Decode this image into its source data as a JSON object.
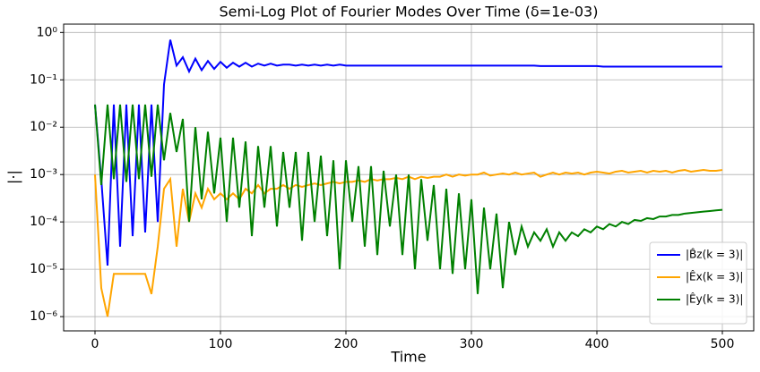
{
  "chart_data": {
    "type": "line",
    "title": "Semi-Log Plot of Fourier Modes Over Time (δ=1e-03)",
    "x_label": "Time",
    "y_label": "|·|",
    "log_y": true,
    "grid": true,
    "legend": "lower right",
    "xlim": [
      -25,
      525
    ],
    "xticks": [
      0,
      100,
      200,
      300,
      400,
      500
    ],
    "ylim": [
      5e-07,
      1.5
    ],
    "yticks": [
      {
        "value": 1,
        "label": "10⁰"
      },
      {
        "value": 0.1,
        "label": "10⁻¹"
      },
      {
        "value": 0.01,
        "label": "10⁻²"
      },
      {
        "value": 0.001,
        "label": "10⁻³"
      },
      {
        "value": 0.0001,
        "label": "10⁻⁴"
      },
      {
        "value": 1e-05,
        "label": "10⁻⁵"
      },
      {
        "value": 1e-06,
        "label": "10⁻⁶"
      }
    ],
    "x": [
      0,
      5,
      10,
      15,
      20,
      25,
      30,
      35,
      40,
      45,
      50,
      55,
      60,
      65,
      70,
      75,
      80,
      85,
      90,
      95,
      100,
      105,
      110,
      115,
      120,
      125,
      130,
      135,
      140,
      145,
      150,
      155,
      160,
      165,
      170,
      175,
      180,
      185,
      190,
      195,
      200,
      205,
      210,
      215,
      220,
      225,
      230,
      235,
      240,
      245,
      250,
      255,
      260,
      265,
      270,
      275,
      280,
      285,
      290,
      295,
      300,
      305,
      310,
      315,
      320,
      325,
      330,
      335,
      340,
      345,
      350,
      355,
      360,
      365,
      370,
      375,
      380,
      385,
      390,
      395,
      400,
      405,
      410,
      415,
      420,
      425,
      430,
      435,
      440,
      445,
      450,
      455,
      460,
      465,
      470,
      475,
      480,
      485,
      490,
      495,
      500
    ],
    "series": [
      {
        "name": "|B̂z(k = 3)|",
        "color": "#0000ff",
        "values": [
          0.03,
          0.0008,
          1.2e-05,
          0.03,
          3e-05,
          0.03,
          5e-05,
          0.03,
          6e-05,
          0.03,
          0.0001,
          0.08,
          0.7,
          0.2,
          0.3,
          0.15,
          0.28,
          0.16,
          0.25,
          0.17,
          0.24,
          0.18,
          0.23,
          0.19,
          0.23,
          0.19,
          0.22,
          0.2,
          0.22,
          0.2,
          0.21,
          0.21,
          0.2,
          0.21,
          0.2,
          0.21,
          0.2,
          0.21,
          0.2,
          0.21,
          0.2,
          0.2,
          0.2,
          0.2,
          0.2,
          0.2,
          0.2,
          0.2,
          0.2,
          0.2,
          0.2,
          0.2,
          0.2,
          0.2,
          0.2,
          0.2,
          0.2,
          0.2,
          0.2,
          0.2,
          0.2,
          0.2,
          0.2,
          0.2,
          0.2,
          0.2,
          0.2,
          0.2,
          0.2,
          0.2,
          0.2,
          0.195,
          0.195,
          0.195,
          0.195,
          0.195,
          0.195,
          0.195,
          0.195,
          0.195,
          0.195,
          0.19,
          0.19,
          0.19,
          0.19,
          0.19,
          0.19,
          0.19,
          0.19,
          0.19,
          0.19,
          0.19,
          0.19,
          0.19,
          0.19,
          0.19,
          0.19,
          0.19,
          0.19,
          0.19,
          0.19
        ]
      },
      {
        "name": "|Êx(k = 3)|",
        "color": "#ffa500",
        "values": [
          0.001,
          4e-06,
          1e-06,
          8e-06,
          8e-06,
          8e-06,
          8e-06,
          8e-06,
          8e-06,
          3e-06,
          3e-05,
          0.0005,
          0.0008,
          3e-05,
          0.0005,
          0.0001,
          0.0004,
          0.0002,
          0.0005,
          0.0003,
          0.0004,
          0.0003,
          0.0004,
          0.0003,
          0.0005,
          0.0004,
          0.0006,
          0.0004,
          0.0005,
          0.0005,
          0.0006,
          0.0005,
          0.0006,
          0.00055,
          0.0006,
          0.00065,
          0.0006,
          0.00065,
          0.0007,
          0.00065,
          0.0007,
          0.0007,
          0.00075,
          0.0007,
          0.0008,
          0.00075,
          0.0008,
          0.0008,
          0.00085,
          0.0008,
          0.0009,
          0.0008,
          0.0009,
          0.00085,
          0.0009,
          0.0009,
          0.001,
          0.0009,
          0.001,
          0.00095,
          0.001,
          0.001,
          0.0011,
          0.00095,
          0.001,
          0.00105,
          0.001,
          0.0011,
          0.001,
          0.00105,
          0.0011,
          0.0009,
          0.001,
          0.0011,
          0.001,
          0.0011,
          0.00105,
          0.0011,
          0.001,
          0.0011,
          0.00115,
          0.0011,
          0.00105,
          0.00115,
          0.0012,
          0.0011,
          0.00115,
          0.0012,
          0.0011,
          0.0012,
          0.00115,
          0.0012,
          0.0011,
          0.0012,
          0.00125,
          0.00115,
          0.0012,
          0.00125,
          0.0012,
          0.0012,
          0.00125
        ]
      },
      {
        "name": "|Êy(k = 3)|",
        "color": "#008000",
        "values": [
          0.03,
          0.0006,
          0.03,
          0.0008,
          0.03,
          0.0007,
          0.03,
          0.0008,
          0.03,
          0.0009,
          0.03,
          0.002,
          0.02,
          0.003,
          0.015,
          0.0001,
          0.01,
          0.0003,
          0.008,
          0.0004,
          0.006,
          0.0001,
          0.006,
          0.0002,
          0.005,
          5e-05,
          0.004,
          0.0002,
          0.004,
          8e-05,
          0.003,
          0.0002,
          0.003,
          4e-05,
          0.003,
          0.0001,
          0.0025,
          5e-05,
          0.002,
          1e-05,
          0.002,
          0.0001,
          0.0015,
          3e-05,
          0.0015,
          2e-05,
          0.0012,
          8e-05,
          0.001,
          2e-05,
          0.001,
          1e-05,
          0.0008,
          4e-05,
          0.0006,
          1e-05,
          0.0005,
          8e-06,
          0.0004,
          1e-05,
          0.0003,
          3e-06,
          0.0002,
          1e-05,
          0.00015,
          4e-06,
          0.0001,
          2e-05,
          8e-05,
          3e-05,
          6e-05,
          4e-05,
          7e-05,
          3e-05,
          6e-05,
          4e-05,
          6e-05,
          5e-05,
          7e-05,
          6e-05,
          8e-05,
          7e-05,
          9e-05,
          8e-05,
          0.0001,
          9e-05,
          0.00011,
          0.000105,
          0.00012,
          0.000115,
          0.00013,
          0.00013,
          0.00014,
          0.00014,
          0.00015,
          0.000155,
          0.00016,
          0.000165,
          0.00017,
          0.000175,
          0.00018
        ]
      }
    ]
  }
}
